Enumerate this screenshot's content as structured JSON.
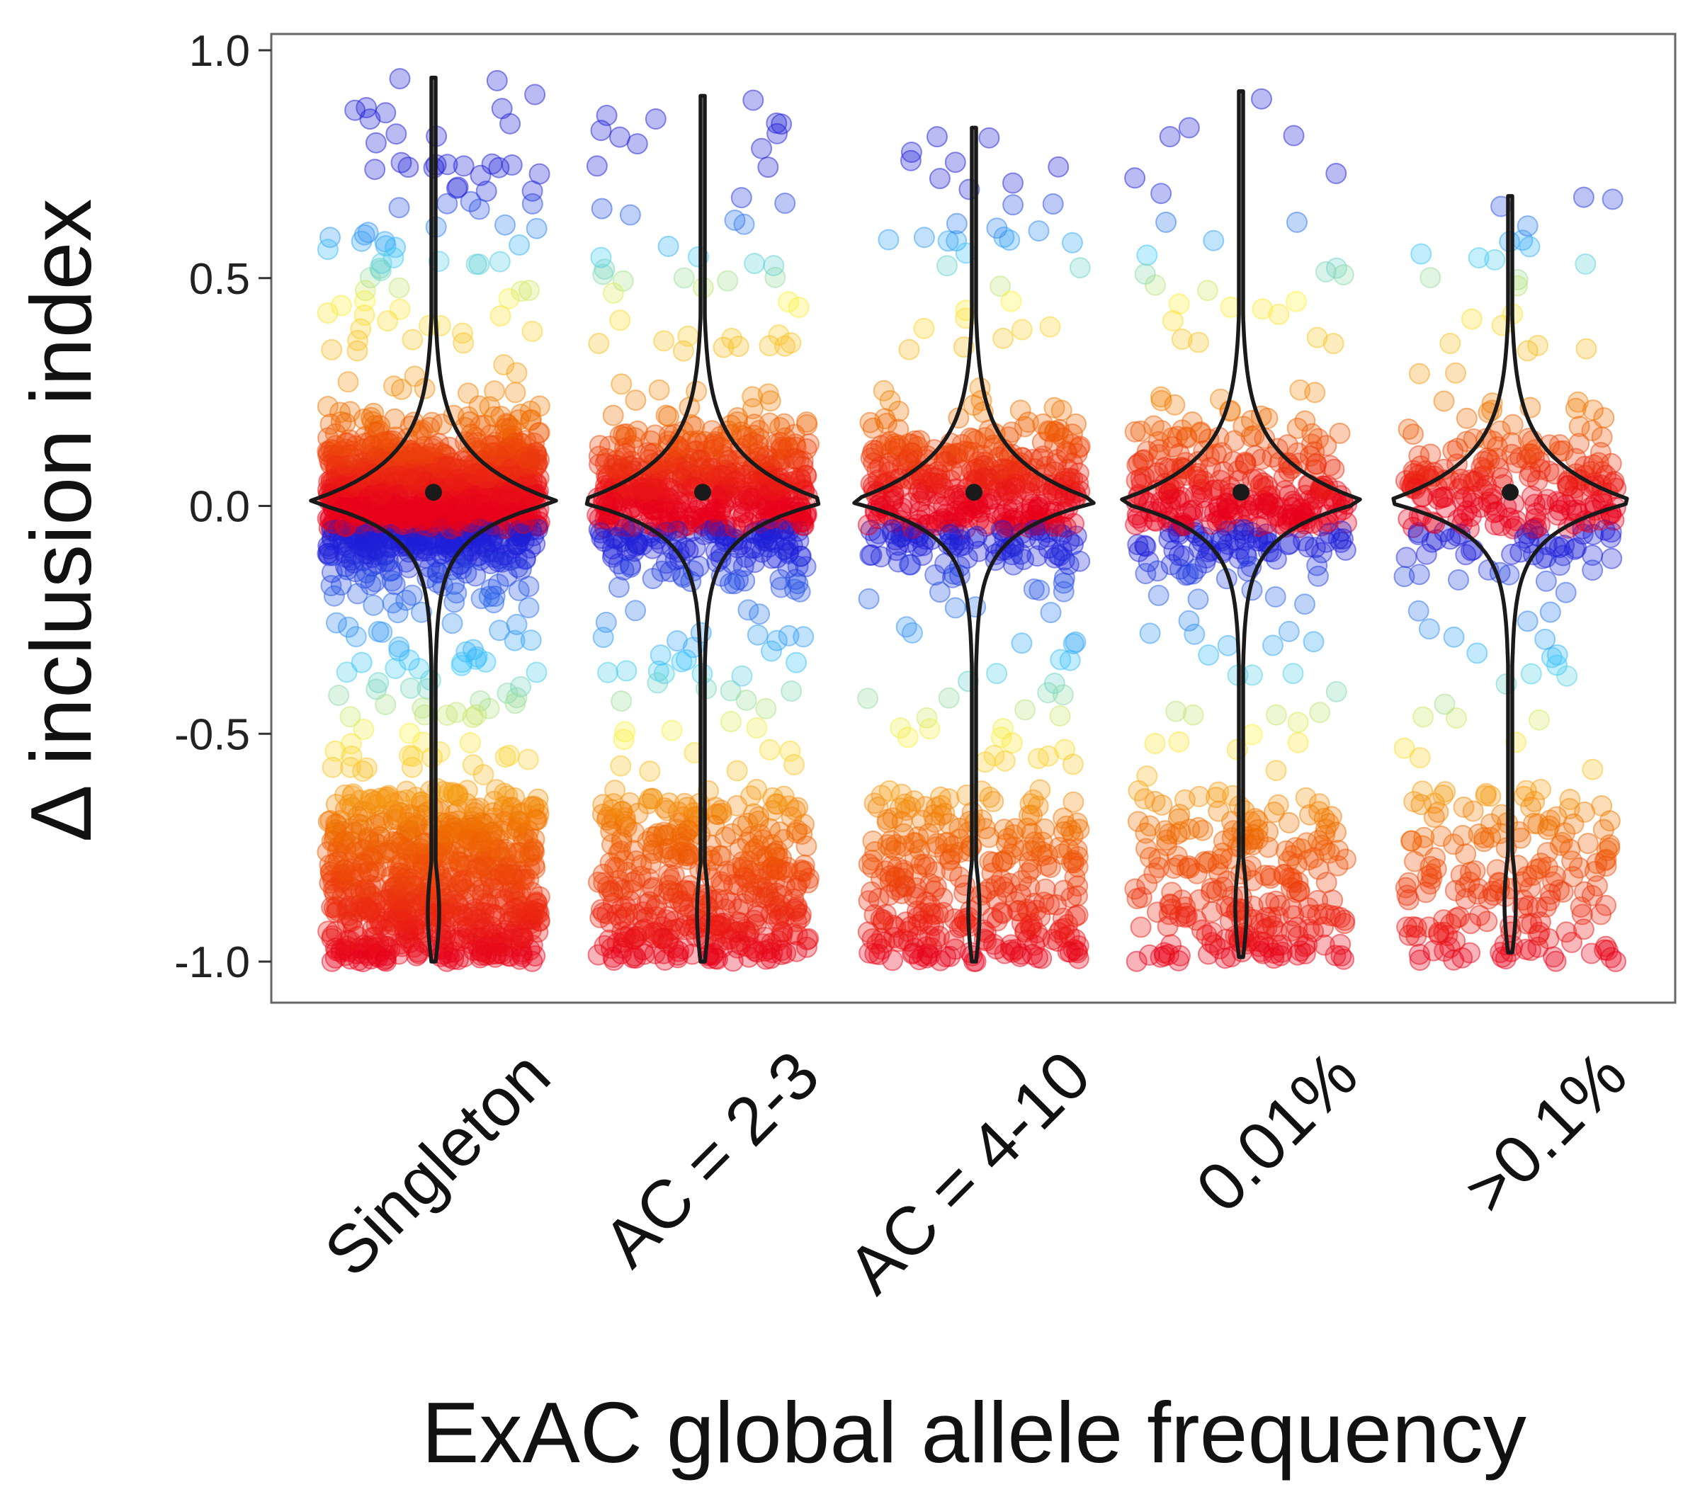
{
  "chart_data": {
    "type": "violin-jitter",
    "title": "",
    "xlabel": "ExAC global allele frequency",
    "ylabel": "Δ inclusion index",
    "categories": [
      "Singleton",
      "AC = 2-3",
      "AC = 4-10",
      "0.01%",
      ">0.1%"
    ],
    "ylim": [
      -1.1,
      1.0
    ],
    "yticks": [
      1.0,
      0.5,
      0.0,
      -0.5,
      -1.0
    ],
    "ytick_labels": [
      "1.0",
      "0.5",
      "0.0",
      "-0.5",
      "-1.0"
    ],
    "grid": false,
    "legend": "none",
    "color_scale": {
      "description": "point color by value",
      "stops": [
        {
          "value": -1.0,
          "color": "#e8001c"
        },
        {
          "value": -0.7,
          "color": "#f07000"
        },
        {
          "value": -0.5,
          "color": "#fff23a"
        },
        {
          "value": -0.35,
          "color": "#38c8ff"
        },
        {
          "value": -0.1,
          "color": "#1f1fd8"
        },
        {
          "value": 0.0,
          "color": "#e8001c"
        },
        {
          "value": 0.2,
          "color": "#f07000"
        },
        {
          "value": 0.45,
          "color": "#fff23a"
        },
        {
          "value": 0.55,
          "color": "#38c8ff"
        },
        {
          "value": 0.7,
          "color": "#1f1fd8"
        }
      ]
    },
    "series": [
      {
        "category": "Singleton",
        "median": 0.03,
        "violin_min": -1.0,
        "violin_max": 0.94,
        "relative_n": 1.0
      },
      {
        "category": "AC = 2-3",
        "median": 0.03,
        "violin_min": -1.0,
        "violin_max": 0.9,
        "relative_n": 0.55
      },
      {
        "category": "AC = 4-10",
        "median": 0.03,
        "violin_min": -1.0,
        "violin_max": 0.83,
        "relative_n": 0.4
      },
      {
        "category": "0.01%",
        "median": 0.03,
        "violin_min": -0.99,
        "violin_max": 0.91,
        "relative_n": 0.3
      },
      {
        "category": ">0.1%",
        "median": 0.03,
        "violin_min": -0.98,
        "violin_max": 0.68,
        "relative_n": 0.22
      }
    ]
  }
}
